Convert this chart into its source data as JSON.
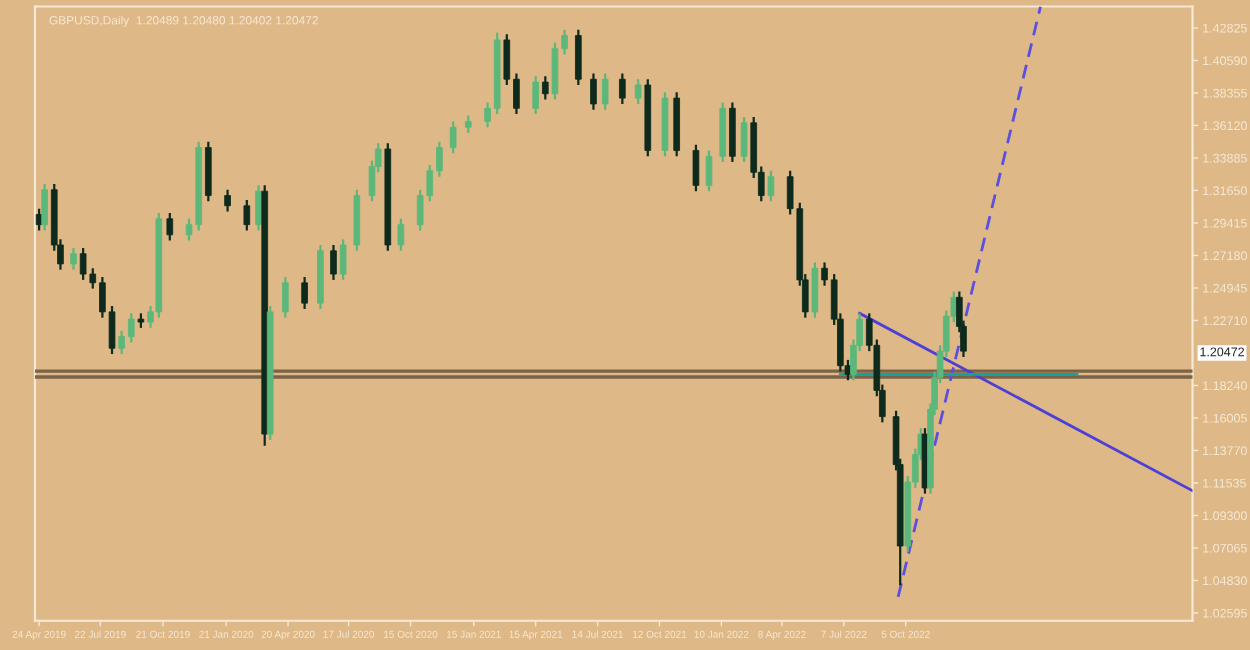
{
  "chart_data": {
    "type": "candlestick",
    "title": "GBPUSD,Daily  1.20489 1.20480 1.20402 1.20472",
    "colors": [
      "#0d2a1c",
      "#5cb87a",
      "#0d2a1c",
      "#0d2a1c",
      "#5cb87a",
      "#0d2a1c",
      "#0d2a1c",
      "#0d2a1c",
      "#0d2a1c",
      "#5cb87a",
      "#5cb87a",
      "#0d2a1c",
      "#5cb87a",
      "#5cb87a",
      "#0d2a1c",
      "#5cb87a",
      "#5cb87a",
      "#0d2a1c",
      "#0d2a1c",
      "#0d2a1c",
      "#5cb87a",
      "#0d2a1c",
      "#5cb87a",
      "#5cb87a",
      "#0d2a1c",
      "#5cb87a",
      "#0d2a1c",
      "#5cb87a",
      "#5cb87a",
      "#5cb87a",
      "#5cb87a",
      "#0d2a1c",
      "#5cb87a",
      "#5cb87a",
      "#5cb87a",
      "#5cb87a",
      "#5cb87a",
      "#5cb87a",
      "#5cb87a",
      "#5cb87a",
      "#0d2a1c",
      "#0d2a1c",
      "#5cb87a",
      "#0d2a1c",
      "#5cb87a",
      "#5cb87a",
      "#0d2a1c",
      "#0d2a1c",
      "#5cb87a",
      "#0d2a1c",
      "#5cb87a",
      "#0d2a1c",
      "#5cb87a",
      "#0d2a1c",
      "#0d2a1c",
      "#5cb87a",
      "#5cb87a",
      "#0d2a1c",
      "#5cb87a",
      "#0d2a1c",
      "#0d2a1c",
      "#5cb87a",
      "#0d2a1c",
      "#0d2a1c",
      "#0d2a1c",
      "#5cb87a",
      "#0d2a1c",
      "#0d2a1c",
      "#0d2a1c",
      "#0d2a1c",
      "#5cb87a",
      "#5cb87a",
      "#0d2a1c",
      "#0d2a1c",
      "#0d2a1c",
      "#0d2a1c",
      "#0d2a1c",
      "#5cb87a",
      "#5cb87a",
      "#5cb87a",
      "#0d2a1c",
      "#5cb87a",
      "#5cb87a",
      "#5cb87a",
      "#5cb87a",
      "#5cb87a",
      "#0d2a1c",
      "#0d2a1c"
    ],
    "x": [
      "2019-04-24",
      "2019-05-02",
      "2019-05-16",
      "2019-05-25",
      "2019-06-13",
      "2019-06-27",
      "2019-07-11",
      "2019-07-25",
      "2019-08-08",
      "2019-08-22",
      "2019-09-05",
      "2019-09-19",
      "2019-10-03",
      "2019-10-15",
      "2019-10-31",
      "2019-11-28",
      "2019-12-12",
      "2019-12-26",
      "2020-01-23",
      "2020-02-20",
      "2020-03-08",
      "2020-03-17",
      "2020-03-25",
      "2020-04-16",
      "2020-05-14",
      "2020-06-06",
      "2020-06-25",
      "2020-07-09",
      "2020-07-29",
      "2020-08-20",
      "2020-08-29",
      "2020-09-12",
      "2020-10-01",
      "2020-10-29",
      "2020-11-12",
      "2020-11-26",
      "2020-12-16",
      "2021-01-07",
      "2021-02-04",
      "2021-02-18",
      "2021-03-04",
      "2021-03-18",
      "2021-04-15",
      "2021-04-29",
      "2021-05-13",
      "2021-05-27",
      "2021-06-16",
      "2021-07-08",
      "2021-07-25",
      "2021-08-19",
      "2021-09-11",
      "2021-09-25",
      "2021-10-20",
      "2021-11-06",
      "2021-12-04",
      "2021-12-23",
      "2022-01-12",
      "2022-01-26",
      "2022-02-12",
      "2022-02-26",
      "2022-03-09",
      "2022-03-23",
      "2022-04-20",
      "2022-05-04",
      "2022-05-12",
      "2022-05-26",
      "2022-06-09",
      "2022-06-23",
      "2022-07-02",
      "2022-07-13",
      "2022-07-21",
      "2022-07-30",
      "2022-08-13",
      "2022-08-24",
      "2022-09-01",
      "2022-09-21",
      "2022-09-27",
      "2022-10-08",
      "2022-10-19",
      "2022-10-27",
      "2022-11-02",
      "2022-11-10",
      "2022-11-16",
      "2022-11-24",
      "2022-12-03",
      "2022-12-14",
      "2022-12-22",
      "2022-12-28"
    ],
    "ohlc": [
      [
        1.3,
        1.304,
        1.289,
        1.293
      ],
      [
        1.293,
        1.321,
        1.289,
        1.317
      ],
      [
        1.317,
        1.321,
        1.275,
        1.279
      ],
      [
        1.279,
        1.283,
        1.262,
        1.266
      ],
      [
        1.266,
        1.277,
        1.262,
        1.273
      ],
      [
        1.273,
        1.277,
        1.255,
        1.259
      ],
      [
        1.259,
        1.263,
        1.249,
        1.253
      ],
      [
        1.253,
        1.257,
        1.229,
        1.233
      ],
      [
        1.233,
        1.237,
        1.204,
        1.208
      ],
      [
        1.208,
        1.22,
        1.204,
        1.216
      ],
      [
        1.216,
        1.232,
        1.212,
        1.228
      ],
      [
        1.228,
        1.232,
        1.222,
        1.226
      ],
      [
        1.226,
        1.237,
        1.222,
        1.233
      ],
      [
        1.233,
        1.301,
        1.229,
        1.297
      ],
      [
        1.297,
        1.301,
        1.282,
        1.286
      ],
      [
        1.286,
        1.297,
        1.282,
        1.293
      ],
      [
        1.293,
        1.35,
        1.289,
        1.346
      ],
      [
        1.346,
        1.35,
        1.309,
        1.313
      ],
      [
        1.313,
        1.317,
        1.302,
        1.306
      ],
      [
        1.306,
        1.31,
        1.289,
        1.293
      ],
      [
        1.293,
        1.32,
        1.289,
        1.316
      ],
      [
        1.316,
        1.32,
        1.141,
        1.149
      ],
      [
        1.149,
        1.237,
        1.145,
        1.233
      ],
      [
        1.233,
        1.257,
        1.229,
        1.253
      ],
      [
        1.253,
        1.257,
        1.235,
        1.239
      ],
      [
        1.239,
        1.279,
        1.235,
        1.275
      ],
      [
        1.275,
        1.279,
        1.255,
        1.259
      ],
      [
        1.259,
        1.283,
        1.255,
        1.279
      ],
      [
        1.279,
        1.317,
        1.275,
        1.313
      ],
      [
        1.313,
        1.337,
        1.309,
        1.333
      ],
      [
        1.333,
        1.349,
        1.329,
        1.345
      ],
      [
        1.345,
        1.349,
        1.275,
        1.279
      ],
      [
        1.279,
        1.297,
        1.275,
        1.293
      ],
      [
        1.293,
        1.317,
        1.289,
        1.313
      ],
      [
        1.313,
        1.334,
        1.309,
        1.33
      ],
      [
        1.33,
        1.35,
        1.326,
        1.346
      ],
      [
        1.346,
        1.364,
        1.342,
        1.36
      ],
      [
        1.36,
        1.368,
        1.356,
        1.364
      ],
      [
        1.364,
        1.377,
        1.36,
        1.373
      ],
      [
        1.373,
        1.425,
        1.369,
        1.42
      ],
      [
        1.42,
        1.424,
        1.389,
        1.393
      ],
      [
        1.393,
        1.397,
        1.369,
        1.373
      ],
      [
        1.373,
        1.395,
        1.369,
        1.391
      ],
      [
        1.391,
        1.395,
        1.379,
        1.383
      ],
      [
        1.383,
        1.418,
        1.379,
        1.414
      ],
      [
        1.414,
        1.427,
        1.41,
        1.423
      ],
      [
        1.423,
        1.427,
        1.389,
        1.393
      ],
      [
        1.393,
        1.397,
        1.372,
        1.376
      ],
      [
        1.376,
        1.397,
        1.372,
        1.393
      ],
      [
        1.393,
        1.397,
        1.376,
        1.38
      ],
      [
        1.38,
        1.393,
        1.376,
        1.389
      ],
      [
        1.389,
        1.393,
        1.34,
        1.344
      ],
      [
        1.344,
        1.384,
        1.34,
        1.38
      ],
      [
        1.38,
        1.384,
        1.34,
        1.344
      ],
      [
        1.344,
        1.348,
        1.316,
        1.32
      ],
      [
        1.32,
        1.344,
        1.316,
        1.34
      ],
      [
        1.34,
        1.377,
        1.336,
        1.373
      ],
      [
        1.373,
        1.377,
        1.336,
        1.34
      ],
      [
        1.34,
        1.367,
        1.336,
        1.363
      ],
      [
        1.363,
        1.367,
        1.325,
        1.329
      ],
      [
        1.329,
        1.333,
        1.309,
        1.313
      ],
      [
        1.313,
        1.33,
        1.309,
        1.326
      ],
      [
        1.326,
        1.33,
        1.3,
        1.304
      ],
      [
        1.304,
        1.308,
        1.251,
        1.255
      ],
      [
        1.255,
        1.259,
        1.229,
        1.233
      ],
      [
        1.233,
        1.267,
        1.229,
        1.263
      ],
      [
        1.263,
        1.267,
        1.251,
        1.255
      ],
      [
        1.255,
        1.259,
        1.224,
        1.228
      ],
      [
        1.228,
        1.232,
        1.192,
        1.196
      ],
      [
        1.196,
        1.2,
        1.186,
        1.19
      ],
      [
        1.19,
        1.214,
        1.186,
        1.21
      ],
      [
        1.21,
        1.232,
        1.206,
        1.228
      ],
      [
        1.228,
        1.232,
        1.206,
        1.21
      ],
      [
        1.21,
        1.214,
        1.175,
        1.179
      ],
      [
        1.179,
        1.183,
        1.157,
        1.161
      ],
      [
        1.161,
        1.165,
        1.124,
        1.128
      ],
      [
        1.128,
        1.132,
        1.045,
        1.072
      ],
      [
        1.072,
        1.12,
        1.068,
        1.116
      ],
      [
        1.116,
        1.139,
        1.112,
        1.135
      ],
      [
        1.135,
        1.153,
        1.131,
        1.149
      ],
      [
        1.149,
        1.153,
        1.108,
        1.112
      ],
      [
        1.112,
        1.17,
        1.108,
        1.166
      ],
      [
        1.166,
        1.192,
        1.162,
        1.188
      ],
      [
        1.188,
        1.21,
        1.184,
        1.206
      ],
      [
        1.206,
        1.234,
        1.202,
        1.23
      ],
      [
        1.23,
        1.247,
        1.226,
        1.243
      ],
      [
        1.243,
        1.247,
        1.219,
        1.223
      ],
      [
        1.223,
        1.227,
        1.202,
        1.206
      ]
    ],
    "series": [
      {
        "type": "line",
        "color": "#4b3fd8",
        "x": [
          "2022-07-30",
          "2023-11-26"
        ],
        "values": [
          1.232,
          1.11
        ]
      },
      {
        "type": "line",
        "color": "#5a4fe0",
        "line_style": "dashed",
        "x": [
          "2022-09-24",
          "2023-04-19"
        ],
        "values": [
          1.037,
          1.443
        ]
      },
      {
        "type": "line",
        "color": "#1aa09a",
        "x": [
          "2022-07-02",
          "2023-06-11"
        ],
        "values": [
          1.19,
          1.19
        ]
      }
    ],
    "ref_lines": [
      {
        "axis": "y",
        "value": 1.1923,
        "color": "#7a6448"
      },
      {
        "axis": "y",
        "value": 1.1882,
        "color": "#7a6448"
      }
    ],
    "annotations": [
      "1.20472"
    ],
    "xlim": [
      "2019-04-18",
      "2023-11-26"
    ],
    "xticks": [
      {
        "value": "2019-04-24",
        "label": "24 Apr 2019"
      },
      {
        "value": "2019-07-22",
        "label": "22 Jul 2019"
      },
      {
        "value": "2019-10-21",
        "label": "21 Oct 2019"
      },
      {
        "value": "2020-01-21",
        "label": "21 Jan 2020"
      },
      {
        "value": "2020-04-20",
        "label": "20 Apr 2020"
      },
      {
        "value": "2020-07-17",
        "label": "17 Jul 2020"
      },
      {
        "value": "2020-10-15",
        "label": "15 Oct 2020"
      },
      {
        "value": "2021-01-15",
        "label": "15 Jan 2021"
      },
      {
        "value": "2021-04-15",
        "label": "15 Apr 2021"
      },
      {
        "value": "2021-07-14",
        "label": "14 Jul 2021"
      },
      {
        "value": "2021-10-12",
        "label": "12 Oct 2021"
      },
      {
        "value": "2022-01-10",
        "label": "10 Jan 2022"
      },
      {
        "value": "2022-04-08",
        "label": "8 Apr 2022"
      },
      {
        "value": "2022-07-07",
        "label": "7 Jul 2022"
      },
      {
        "value": "2022-10-05",
        "label": "5 Oct 2022"
      }
    ],
    "ylim": [
      1.0206,
      1.443
    ],
    "yticks": [
      {
        "value": 1.02595,
        "label": "1.02595"
      },
      {
        "value": 1.0483,
        "label": "1.04830"
      },
      {
        "value": 1.07065,
        "label": "1.07065"
      },
      {
        "value": 1.093,
        "label": "1.09300"
      },
      {
        "value": 1.11535,
        "label": "1.11535"
      },
      {
        "value": 1.1377,
        "label": "1.13770"
      },
      {
        "value": 1.16005,
        "label": "1.16005"
      },
      {
        "value": 1.1824,
        "label": "1.18240"
      },
      {
        "value": 1.2271,
        "label": "1.22710"
      },
      {
        "value": 1.24945,
        "label": "1.24945"
      },
      {
        "value": 1.2718,
        "label": "1.27180"
      },
      {
        "value": 1.29415,
        "label": "1.29415"
      },
      {
        "value": 1.3165,
        "label": "1.31650"
      },
      {
        "value": 1.33885,
        "label": "1.33885"
      },
      {
        "value": 1.3612,
        "label": "1.36120"
      },
      {
        "value": 1.38355,
        "label": "1.38355"
      },
      {
        "value": 1.4059,
        "label": "1.40590"
      },
      {
        "value": 1.42825,
        "label": "1.42825"
      }
    ],
    "grid": false,
    "legend": false
  }
}
